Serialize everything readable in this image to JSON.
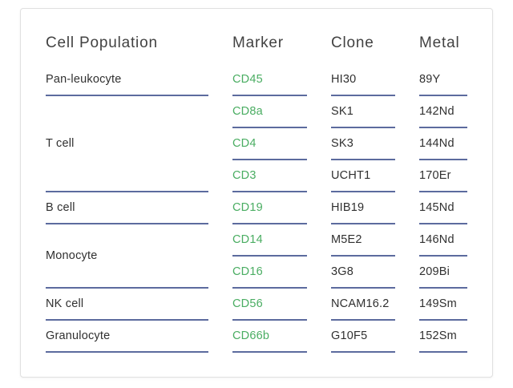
{
  "panel": {
    "headers": {
      "population": "Cell Population",
      "marker": "Marker",
      "clone": "Clone",
      "metal": "Metal"
    },
    "groups": [
      {
        "population": "Pan-leukocyte",
        "rows": [
          {
            "marker": "CD45",
            "clone": "HI30",
            "metal": "89Y"
          }
        ]
      },
      {
        "population": "T cell",
        "rows": [
          {
            "marker": "CD8a",
            "clone": "SK1",
            "metal": "142Nd"
          },
          {
            "marker": "CD4",
            "clone": "SK3",
            "metal": "144Nd"
          },
          {
            "marker": "CD3",
            "clone": "UCHT1",
            "metal": "170Er"
          }
        ]
      },
      {
        "population": "B cell",
        "rows": [
          {
            "marker": "CD19",
            "clone": "HIB19",
            "metal": "145Nd"
          }
        ]
      },
      {
        "population": "Monocyte",
        "rows": [
          {
            "marker": "CD14",
            "clone": "M5E2",
            "metal": "146Nd"
          },
          {
            "marker": "CD16",
            "clone": "3G8",
            "metal": "209Bi"
          }
        ]
      },
      {
        "population": "NK cell",
        "rows": [
          {
            "marker": "CD56",
            "clone": "NCAM16.2",
            "metal": "149Sm"
          }
        ]
      },
      {
        "population": "Granulocyte",
        "rows": [
          {
            "marker": "CD66b",
            "clone": "G10F5",
            "metal": "152Sm"
          }
        ]
      }
    ],
    "colors": {
      "marker_green": "#4aad62",
      "underline_blue": "#5c6b9e",
      "header_text": "#424242",
      "body_text": "#303030",
      "card_border": "#e0e0e0"
    }
  }
}
